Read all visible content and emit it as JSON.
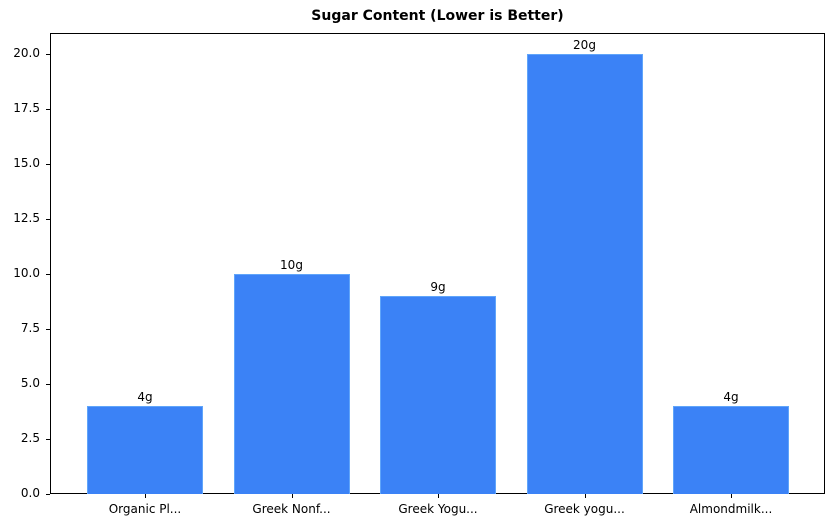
{
  "chart_data": {
    "type": "bar",
    "title": "Sugar Content (Lower is Better)",
    "xlabel": "",
    "ylabel": "",
    "categories": [
      "Organic Pl...",
      "Greek Nonf...",
      "Greek Yogu...",
      "Greek yogu...",
      "Almondmilk..."
    ],
    "values": [
      4,
      10,
      9,
      20,
      4
    ],
    "value_labels": [
      "4g",
      "10g",
      "9g",
      "20g",
      "4g"
    ],
    "ylim": [
      0,
      21
    ],
    "yticks": [
      "0.0",
      "2.5",
      "5.0",
      "7.5",
      "10.0",
      "12.5",
      "15.0",
      "17.5",
      "20.0"
    ],
    "grid": false,
    "bar_color": "#3b82f6",
    "bar_edge_color": "#60a5fa"
  }
}
